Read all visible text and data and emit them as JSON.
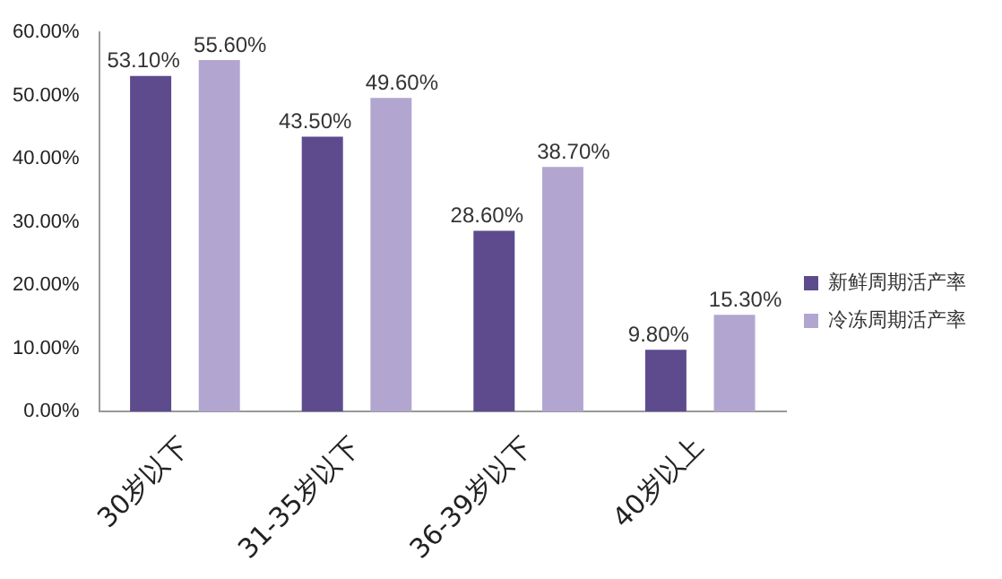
{
  "chart_data": {
    "type": "bar",
    "categories": [
      "30岁以下",
      "31-35岁以下",
      "36-39岁以下",
      "40岁以上"
    ],
    "series": [
      {
        "name": "新鲜周期活产率",
        "color": "#5d4b8e",
        "values": [
          53.1,
          43.5,
          28.6,
          9.8
        ],
        "value_labels": [
          "53.10%",
          "43.50%",
          "28.60%",
          "9.80%"
        ]
      },
      {
        "name": "冷冻周期活产率",
        "color": "#b2a6d1",
        "values": [
          55.6,
          49.6,
          38.7,
          15.3
        ],
        "value_labels": [
          "55.60%",
          "49.60%",
          "38.70%",
          "15.30%"
        ]
      }
    ],
    "ylim": [
      0,
      60
    ],
    "yticks": [
      {
        "value": 0,
        "label": "0.00%"
      },
      {
        "value": 10,
        "label": "10.00%"
      },
      {
        "value": 20,
        "label": "20.00%"
      },
      {
        "value": 30,
        "label": "30.00%"
      },
      {
        "value": 40,
        "label": "40.00%"
      },
      {
        "value": 50,
        "label": "50.00%"
      },
      {
        "value": 60,
        "label": "60.00%"
      }
    ],
    "grid": false,
    "legend": "right"
  }
}
